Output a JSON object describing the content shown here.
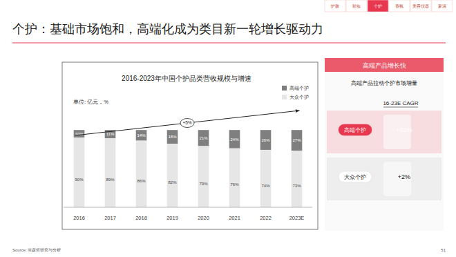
{
  "page": {
    "title": "个护：基础市场饱和，高端化成为类目新一轮增长驱动力",
    "tabs": [
      "护肤",
      "彩妆",
      "个护",
      "香氛",
      "美容仪器",
      "家清"
    ],
    "active_tab": "个护",
    "source": "Source: 埃森哲研究与分析",
    "page_number": "51",
    "panel": {
      "header": "高端产品增长快",
      "subtitle": "高端产品拉动个护市场增量",
      "cagr_title": "16-23E CAGR",
      "rows": [
        {
          "label": "高端个护",
          "value": 22,
          "value_label": "+22%"
        },
        {
          "label": "大众个护",
          "value": 2,
          "value_label": "+2%"
        }
      ]
    }
  },
  "chart_data": {
    "type": "bar",
    "title": "2016-2023年中国个护品类营收规模与增速",
    "ylabel": "单位: 亿元，%",
    "annotations": [
      {
        "text": "+5%",
        "value": 5
      }
    ],
    "categories": [
      "2016",
      "2017",
      "2018",
      "2019",
      "2020",
      "2021",
      "2022",
      "2023E"
    ],
    "series": [
      {
        "name": "高端个护",
        "color": "#7f7f7f",
        "values": [
          10,
          11,
          14,
          18,
          21,
          24,
          26,
          27
        ],
        "value_labels": [
          "10%",
          "11%",
          "14%",
          "18%",
          "21%",
          "24%",
          "26%",
          "27%"
        ]
      },
      {
        "name": "大众个护",
        "color": "#e6e6e6",
        "values": [
          90,
          89,
          86,
          82,
          79,
          76,
          74,
          73
        ],
        "value_labels": [
          "90%",
          "89%",
          "86%",
          "82%",
          "79%",
          "76%",
          "74%",
          "73%"
        ]
      }
    ],
    "stacked": true,
    "data_labels": true,
    "ylim": [
      0,
      100
    ],
    "tick_labels": "x",
    "legend": "top-right"
  }
}
